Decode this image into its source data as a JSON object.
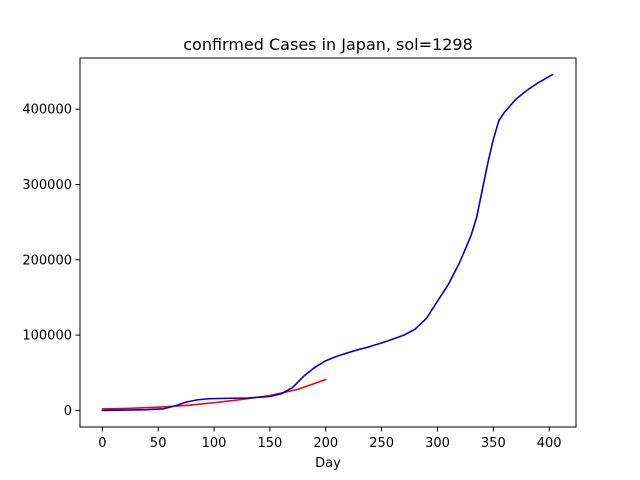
{
  "chart_data": {
    "type": "line",
    "title": "confirmed Cases in Japan, sol=1298",
    "xlabel": "Day",
    "ylabel": "",
    "xlim": [
      -20,
      424
    ],
    "ylim": [
      -22000,
      468000
    ],
    "xticks": [
      0,
      50,
      100,
      150,
      200,
      250,
      300,
      350,
      400
    ],
    "xtick_labels": [
      "0",
      "50",
      "100",
      "150",
      "200",
      "250",
      "300",
      "350",
      "400"
    ],
    "yticks": [
      0,
      100000,
      200000,
      300000,
      400000
    ],
    "ytick_labels": [
      "0",
      "100000",
      "200000",
      "300000",
      "400000"
    ],
    "grid": false,
    "legend": "none",
    "series": [
      {
        "color": "#ff0000",
        "x": [
          0,
          25,
          50,
          75,
          100,
          125,
          150,
          175,
          200
        ],
        "y": [
          2000,
          2800,
          4300,
          6600,
          10200,
          14600,
          19800,
          28000,
          41000
        ]
      },
      {
        "color": "#0000cc",
        "x": [
          0,
          20,
          40,
          55,
          65,
          75,
          85,
          95,
          110,
          130,
          150,
          160,
          170,
          180,
          190,
          200,
          210,
          225,
          240,
          255,
          270,
          280,
          290,
          300,
          310,
          320,
          330,
          335,
          340,
          345,
          350,
          355,
          360,
          370,
          380,
          390,
          403
        ],
        "y": [
          0,
          500,
          1000,
          2200,
          6000,
          11000,
          14000,
          15500,
          16000,
          16500,
          18500,
          22000,
          30000,
          45000,
          57000,
          66000,
          72000,
          79000,
          85000,
          92000,
          100000,
          108000,
          122000,
          145000,
          168000,
          197000,
          232000,
          256000,
          292000,
          328000,
          360000,
          385000,
          396000,
          413000,
          425000,
          435000,
          446000
        ]
      }
    ]
  }
}
